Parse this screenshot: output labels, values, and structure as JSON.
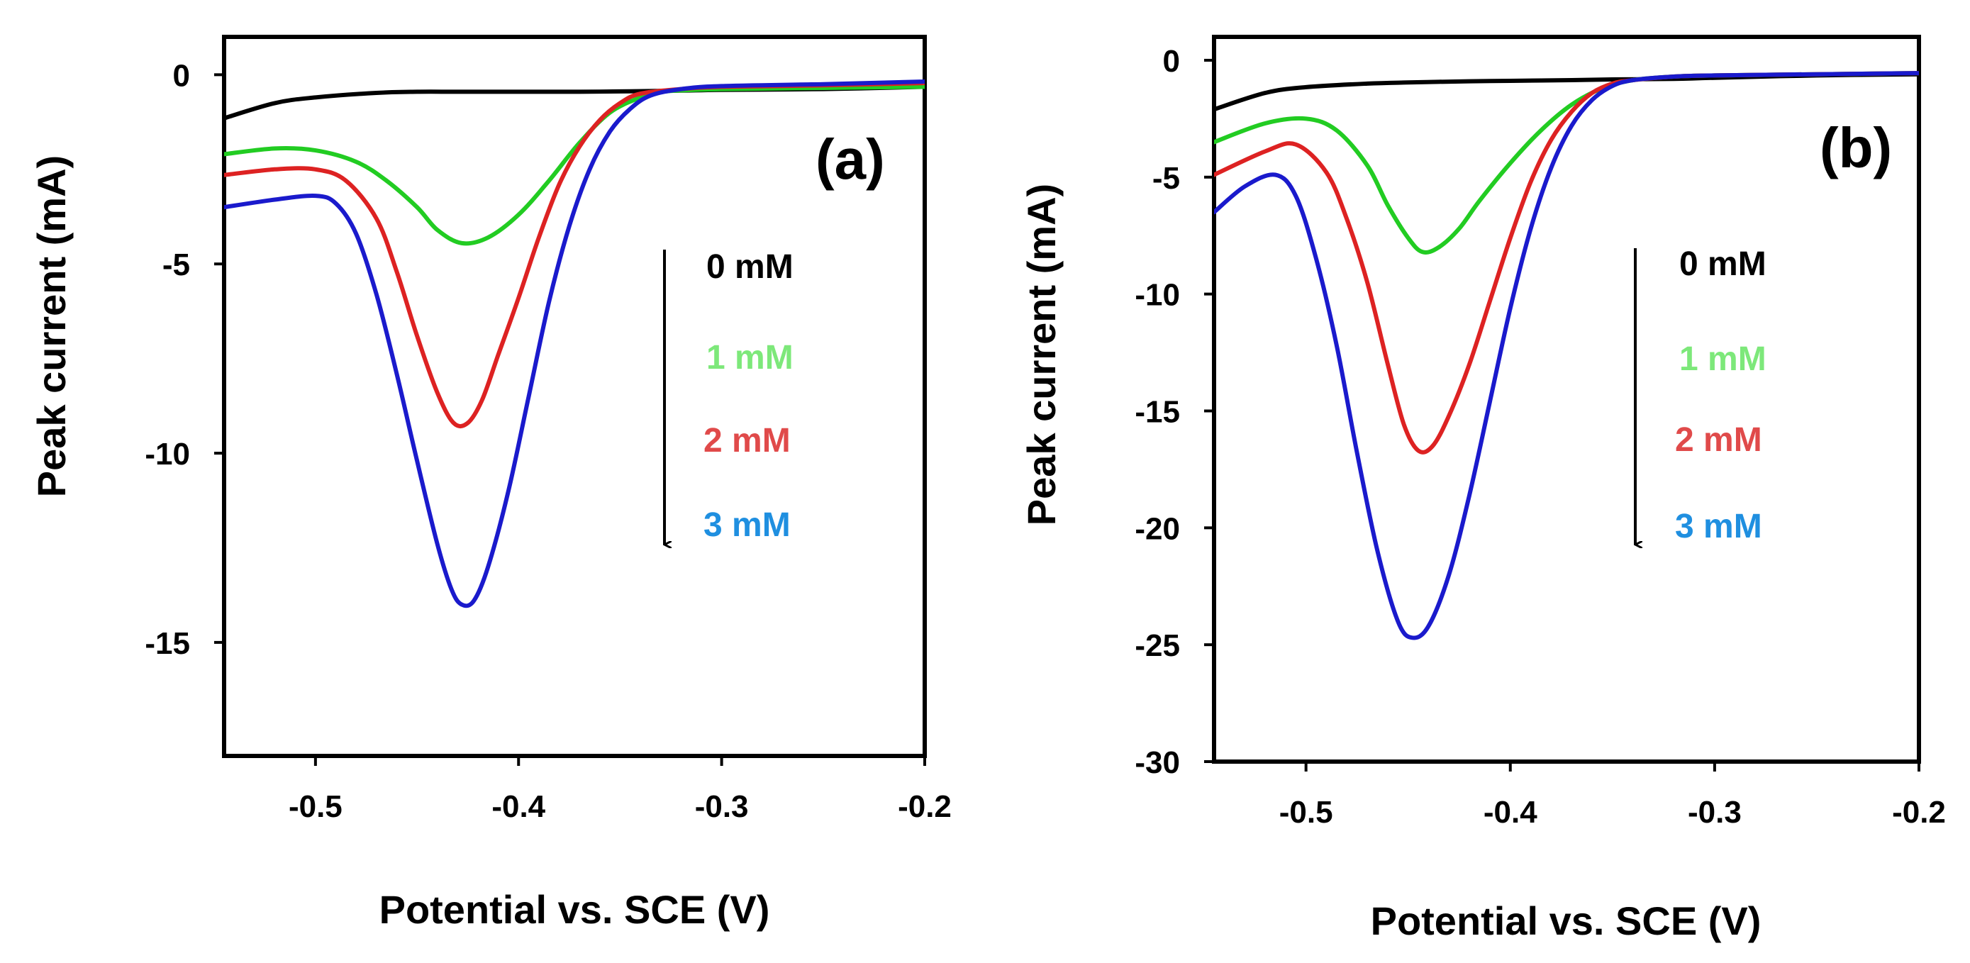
{
  "chart_data": [
    {
      "type": "line",
      "panel_label": "(a)",
      "xlabel": "Potential vs. SCE (V)",
      "ylabel": "Peak current (mA)",
      "xlim": [
        -0.545,
        -0.2
      ],
      "ylim": [
        -18,
        1
      ],
      "xticks": [
        -0.5,
        -0.4,
        -0.3,
        -0.2
      ],
      "xtick_labels": [
        "-0.5",
        "-0.4",
        "-0.3",
        "-0.2"
      ],
      "yticks": [
        0,
        -5,
        -10,
        -15
      ],
      "ytick_labels": [
        "0",
        "-5",
        "-10",
        "-15"
      ],
      "legend": [
        "0 mM",
        "1 mM",
        "2 mM",
        "3 mM"
      ],
      "legend_colors": [
        "#000000",
        "#7de87a",
        "#e04a4a",
        "#1f8fe0"
      ],
      "series": [
        {
          "name": "0 mM",
          "color": "#000000",
          "x": [
            -0.545,
            -0.52,
            -0.5,
            -0.47,
            -0.45,
            -0.43,
            -0.4,
            -0.37,
            -0.35,
            -0.32,
            -0.3,
            -0.25,
            -0.2
          ],
          "y": [
            -1.15,
            -0.75,
            -0.6,
            -0.48,
            -0.45,
            -0.45,
            -0.45,
            -0.45,
            -0.44,
            -0.42,
            -0.4,
            -0.38,
            -0.32
          ]
        },
        {
          "name": "1 mM",
          "color": "#22cc22",
          "x": [
            -0.545,
            -0.52,
            -0.5,
            -0.48,
            -0.465,
            -0.45,
            -0.44,
            -0.428,
            -0.415,
            -0.4,
            -0.385,
            -0.37,
            -0.355,
            -0.34,
            -0.33,
            -0.3,
            -0.25,
            -0.2
          ],
          "y": [
            -2.1,
            -1.95,
            -2.0,
            -2.3,
            -2.8,
            -3.5,
            -4.1,
            -4.45,
            -4.3,
            -3.7,
            -2.8,
            -1.8,
            -1.0,
            -0.6,
            -0.45,
            -0.38,
            -0.35,
            -0.32
          ]
        },
        {
          "name": "2 mM",
          "color": "#dd2222",
          "x": [
            -0.545,
            -0.52,
            -0.5,
            -0.485,
            -0.47,
            -0.46,
            -0.45,
            -0.44,
            -0.432,
            -0.425,
            -0.418,
            -0.41,
            -0.4,
            -0.39,
            -0.38,
            -0.37,
            -0.36,
            -0.35,
            -0.34,
            -0.32,
            -0.3,
            -0.25,
            -0.2
          ],
          "y": [
            -2.65,
            -2.5,
            -2.5,
            -2.8,
            -3.8,
            -5.2,
            -6.9,
            -8.4,
            -9.2,
            -9.2,
            -8.6,
            -7.4,
            -5.9,
            -4.3,
            -2.9,
            -1.9,
            -1.2,
            -0.75,
            -0.5,
            -0.38,
            -0.32,
            -0.28,
            -0.22
          ]
        },
        {
          "name": "3 mM",
          "color": "#1a1acc",
          "x": [
            -0.545,
            -0.52,
            -0.5,
            -0.49,
            -0.48,
            -0.47,
            -0.46,
            -0.45,
            -0.44,
            -0.433,
            -0.428,
            -0.422,
            -0.415,
            -0.405,
            -0.395,
            -0.385,
            -0.375,
            -0.365,
            -0.355,
            -0.345,
            -0.335,
            -0.32,
            -0.3,
            -0.25,
            -0.2
          ],
          "y": [
            -3.5,
            -3.3,
            -3.2,
            -3.4,
            -4.2,
            -5.8,
            -7.9,
            -10.2,
            -12.4,
            -13.6,
            -14.0,
            -13.9,
            -13.0,
            -11.0,
            -8.5,
            -6.0,
            -4.0,
            -2.5,
            -1.5,
            -0.9,
            -0.55,
            -0.38,
            -0.3,
            -0.25,
            -0.18
          ]
        }
      ]
    },
    {
      "type": "line",
      "panel_label": "(b)",
      "xlabel": "Potential vs. SCE (V)",
      "ylabel": "Peak current (mA)",
      "xlim": [
        -0.545,
        -0.2
      ],
      "ylim": [
        -30,
        1
      ],
      "xticks": [
        -0.5,
        -0.4,
        -0.3,
        -0.2
      ],
      "xtick_labels": [
        "-0.5",
        "-0.4",
        "-0.3",
        "-0.2"
      ],
      "yticks": [
        0,
        -5,
        -10,
        -15,
        -20,
        -25,
        -30
      ],
      "ytick_labels": [
        "0",
        "-5",
        "-10",
        "-15",
        "-20",
        "-25",
        "-30"
      ],
      "legend": [
        "0 mM",
        "1 mM",
        "2 mM",
        "3 mM"
      ],
      "legend_colors": [
        "#000000",
        "#7de87a",
        "#e04a4a",
        "#1f8fe0"
      ],
      "series": [
        {
          "name": "0 mM",
          "color": "#000000",
          "x": [
            -0.545,
            -0.52,
            -0.5,
            -0.47,
            -0.45,
            -0.42,
            -0.4,
            -0.37,
            -0.35,
            -0.32,
            -0.3,
            -0.25,
            -0.2
          ],
          "y": [
            -2.1,
            -1.4,
            -1.15,
            -1.0,
            -0.95,
            -0.9,
            -0.88,
            -0.85,
            -0.82,
            -0.8,
            -0.75,
            -0.65,
            -0.6
          ]
        },
        {
          "name": "1 mM",
          "color": "#22cc22",
          "x": [
            -0.545,
            -0.52,
            -0.5,
            -0.485,
            -0.47,
            -0.46,
            -0.45,
            -0.443,
            -0.435,
            -0.425,
            -0.415,
            -0.4,
            -0.385,
            -0.37,
            -0.355,
            -0.34,
            -0.32,
            -0.3,
            -0.25,
            -0.2
          ],
          "y": [
            -3.5,
            -2.7,
            -2.5,
            -3.0,
            -4.5,
            -6.2,
            -7.6,
            -8.2,
            -8.0,
            -7.2,
            -6.0,
            -4.4,
            -3.0,
            -1.9,
            -1.2,
            -0.85,
            -0.7,
            -0.65,
            -0.6,
            -0.55
          ]
        },
        {
          "name": "2 mM",
          "color": "#dd2222",
          "x": [
            -0.545,
            -0.52,
            -0.505,
            -0.49,
            -0.48,
            -0.47,
            -0.46,
            -0.452,
            -0.445,
            -0.438,
            -0.43,
            -0.42,
            -0.41,
            -0.4,
            -0.39,
            -0.38,
            -0.37,
            -0.36,
            -0.35,
            -0.34,
            -0.32,
            -0.3,
            -0.25,
            -0.2
          ],
          "y": [
            -4.9,
            -3.9,
            -3.6,
            -4.8,
            -6.8,
            -9.5,
            -13.0,
            -15.6,
            -16.7,
            -16.5,
            -15.2,
            -13.0,
            -10.3,
            -7.6,
            -5.2,
            -3.4,
            -2.2,
            -1.4,
            -1.0,
            -0.85,
            -0.7,
            -0.65,
            -0.6,
            -0.55
          ]
        },
        {
          "name": "3 mM",
          "color": "#1a1acc",
          "x": [
            -0.545,
            -0.53,
            -0.515,
            -0.505,
            -0.495,
            -0.485,
            -0.475,
            -0.465,
            -0.455,
            -0.448,
            -0.44,
            -0.43,
            -0.42,
            -0.41,
            -0.4,
            -0.39,
            -0.38,
            -0.37,
            -0.36,
            -0.35,
            -0.34,
            -0.32,
            -0.3,
            -0.25,
            -0.2
          ],
          "y": [
            -6.5,
            -5.4,
            -4.9,
            -5.8,
            -8.5,
            -12.2,
            -16.8,
            -21.0,
            -24.0,
            -24.7,
            -24.2,
            -22.0,
            -18.6,
            -14.6,
            -10.6,
            -7.2,
            -4.6,
            -2.8,
            -1.7,
            -1.1,
            -0.85,
            -0.7,
            -0.65,
            -0.6,
            -0.55
          ]
        }
      ]
    }
  ]
}
